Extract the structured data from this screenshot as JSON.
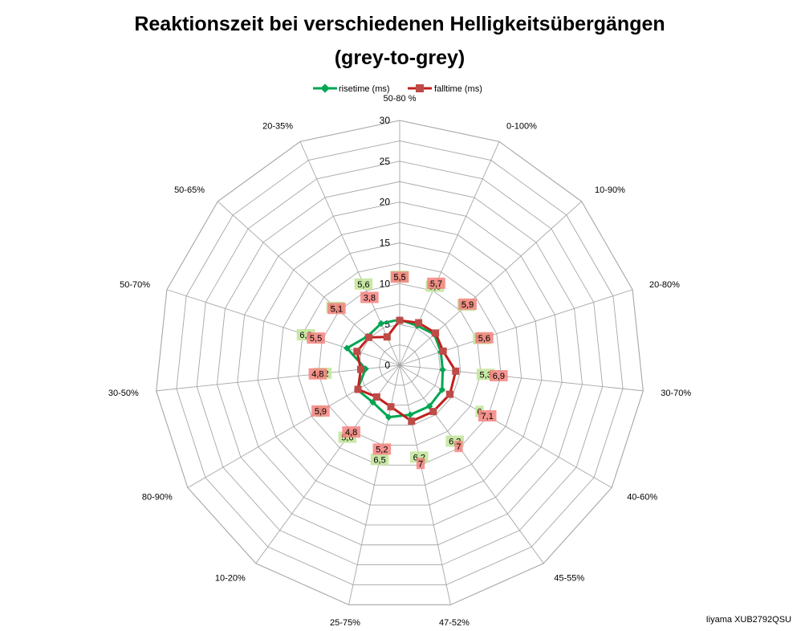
{
  "chart_data": {
    "type": "radar",
    "title_lines": [
      "Reaktionszeit bei verschiedenen Helligkeitsübergängen",
      "(grey-to-grey)"
    ],
    "categories": [
      "50-80 %",
      "0-100%",
      "10-90%",
      "20-80%",
      "30-70%",
      "40-60%",
      "45-55%",
      "47-52%",
      "25-75%",
      "10-20%",
      "80-90%",
      "30-50%",
      "50-70%",
      "50-65%",
      "20-35%"
    ],
    "r_ticks": [
      0,
      5,
      10,
      15,
      20,
      25,
      30
    ],
    "r_tick_labels": [
      "0",
      "5",
      "10",
      "15",
      "20",
      "25",
      "30"
    ],
    "rlim": [
      0,
      30
    ],
    "legend_position": "top",
    "series": [
      {
        "name": "risetime (ms)",
        "color": "#00A651",
        "label_bg": "#C4E59C",
        "marker": "diamond",
        "values": [
          5.6,
          5.3,
          5.7,
          5.3,
          5.3,
          6,
          6.2,
          6.2,
          6.5,
          5.6,
          6,
          4.2,
          6.8,
          5.3,
          5.6
        ],
        "labels": [
          "5,6",
          "5,3",
          "5,7",
          "5,3",
          "5,3",
          "6",
          "6,2",
          "6,2",
          "6,5",
          "5,6",
          "6",
          "4,2",
          "6,8",
          "5,3",
          "5,6"
        ]
      },
      {
        "name": "falltime (ms)",
        "color": "#C0201E",
        "label_bg": "#F4837F",
        "marker": "square",
        "values": [
          5.5,
          5.7,
          5.9,
          5.6,
          6.9,
          7.1,
          7,
          7,
          5.2,
          4.8,
          5.9,
          4.8,
          5.5,
          5.1,
          3.8
        ],
        "labels": [
          "5,5",
          "5,7",
          "5,9",
          "5,6",
          "6,9",
          "7,1",
          "7",
          "7",
          "5,2",
          "4,8",
          "5,9",
          "4,8",
          "5,5",
          "5,1",
          "3,8"
        ]
      }
    ]
  },
  "footer": {
    "text": "Iiyama XUB2792QSU"
  }
}
